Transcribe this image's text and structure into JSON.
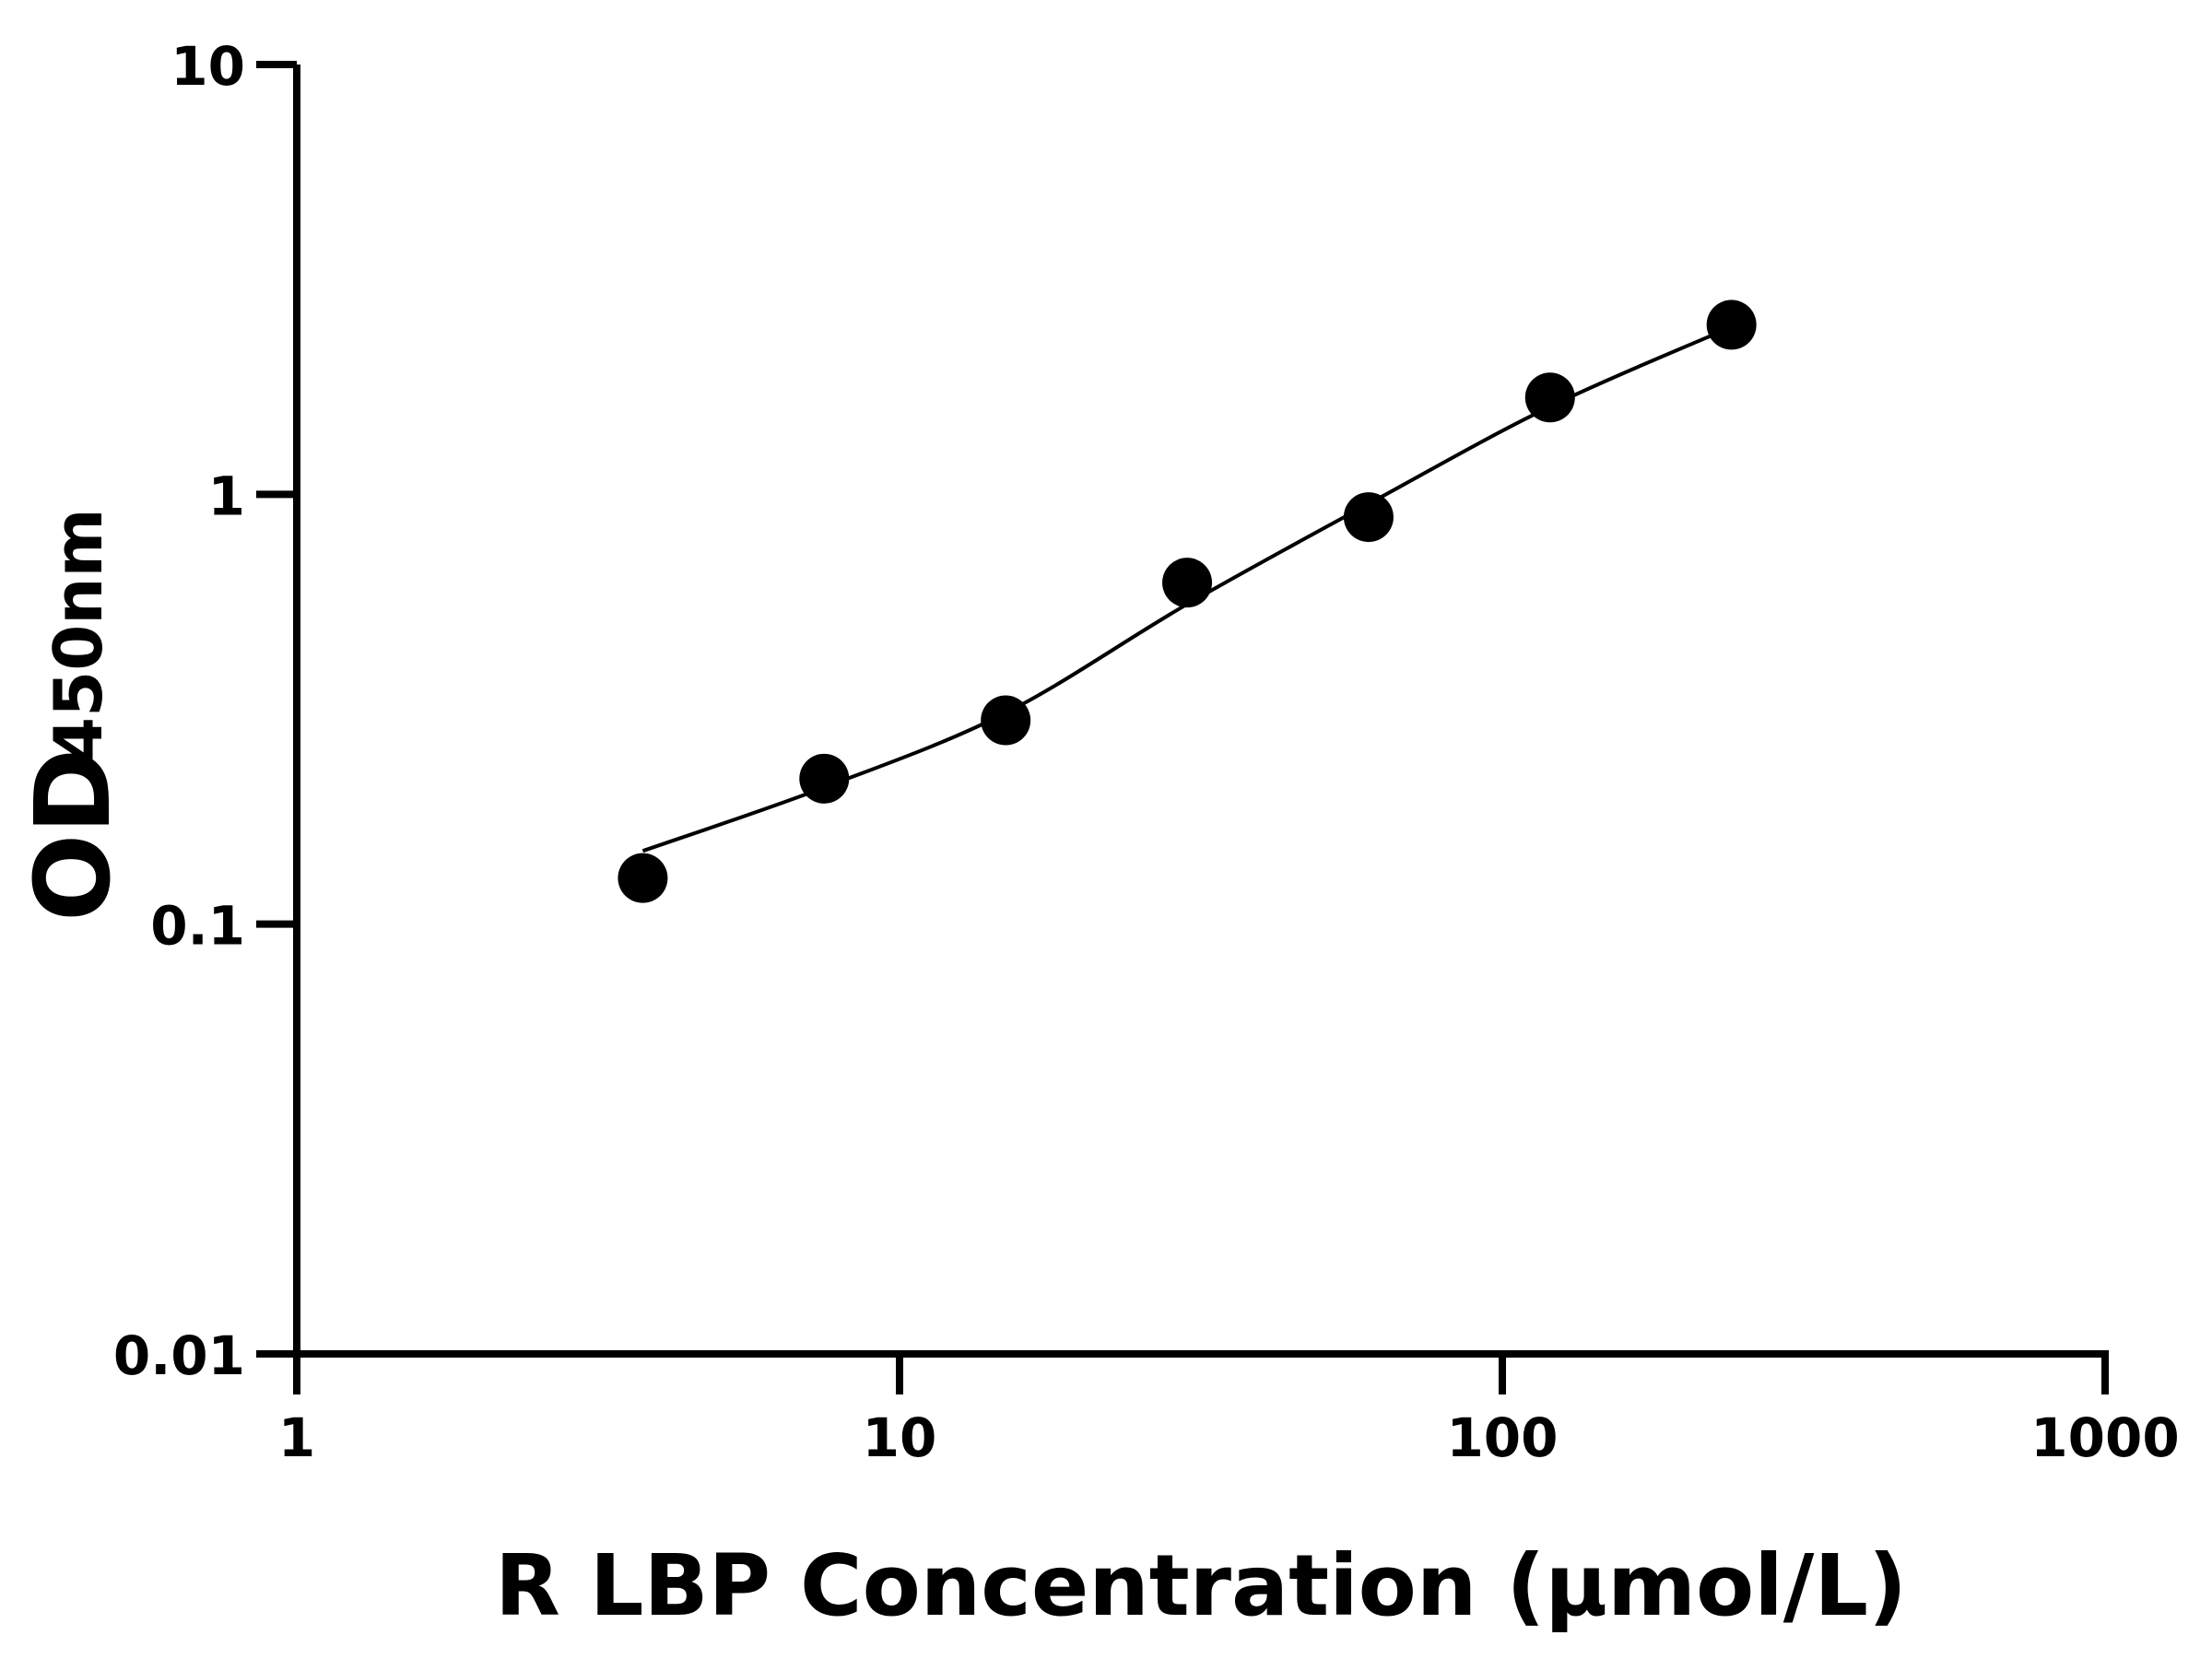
{
  "chart_data": {
    "type": "scatter",
    "title": "",
    "xlabel": "R LBP Concentration (μmol/L)",
    "ylabel_main": "OD",
    "ylabel_sub": "450nm",
    "x_scale": "log",
    "y_scale": "log",
    "xlim": [
      1,
      1000
    ],
    "ylim": [
      0.01,
      10
    ],
    "x_ticks": [
      "1",
      "10",
      "100",
      "1000"
    ],
    "y_ticks": [
      "0.01",
      "0.1",
      "1",
      "10"
    ],
    "grid": false,
    "legend": "none",
    "points": {
      "x": [
        3.75,
        7.5,
        15,
        30,
        60,
        120,
        240
      ],
      "y": [
        0.128,
        0.218,
        0.298,
        0.623,
        0.885,
        1.68,
        2.48
      ]
    },
    "fit_curve": {
      "x": [
        3.75,
        7.5,
        15,
        30,
        60,
        120,
        240
      ],
      "y": [
        0.148,
        0.208,
        0.31,
        0.555,
        0.95,
        1.6,
        2.45
      ]
    },
    "colors": {
      "points": "#000000",
      "line": "#000000",
      "axes": "#000000"
    }
  }
}
